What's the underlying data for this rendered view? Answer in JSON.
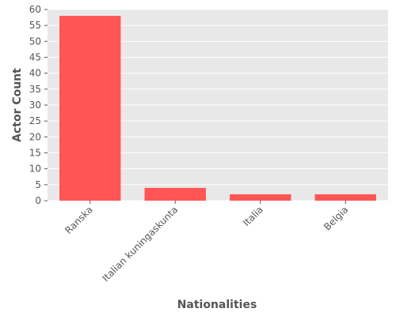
{
  "chart_data": {
    "type": "bar",
    "categories": [
      "Ranska",
      "Italian kuningaskunta",
      "Italia",
      "Belgia"
    ],
    "values": [
      58,
      4,
      2,
      2
    ],
    "xlabel": "Nationalities",
    "ylabel": "Actor Count",
    "ylim": [
      0,
      60
    ],
    "yticks": [
      0,
      5,
      10,
      15,
      20,
      25,
      30,
      35,
      40,
      45,
      50,
      55,
      60
    ],
    "grid": true,
    "colors": {
      "bar": "#ff5555",
      "background": "#e8e8e8",
      "grid": "#ffffff",
      "text": "#555555"
    }
  }
}
